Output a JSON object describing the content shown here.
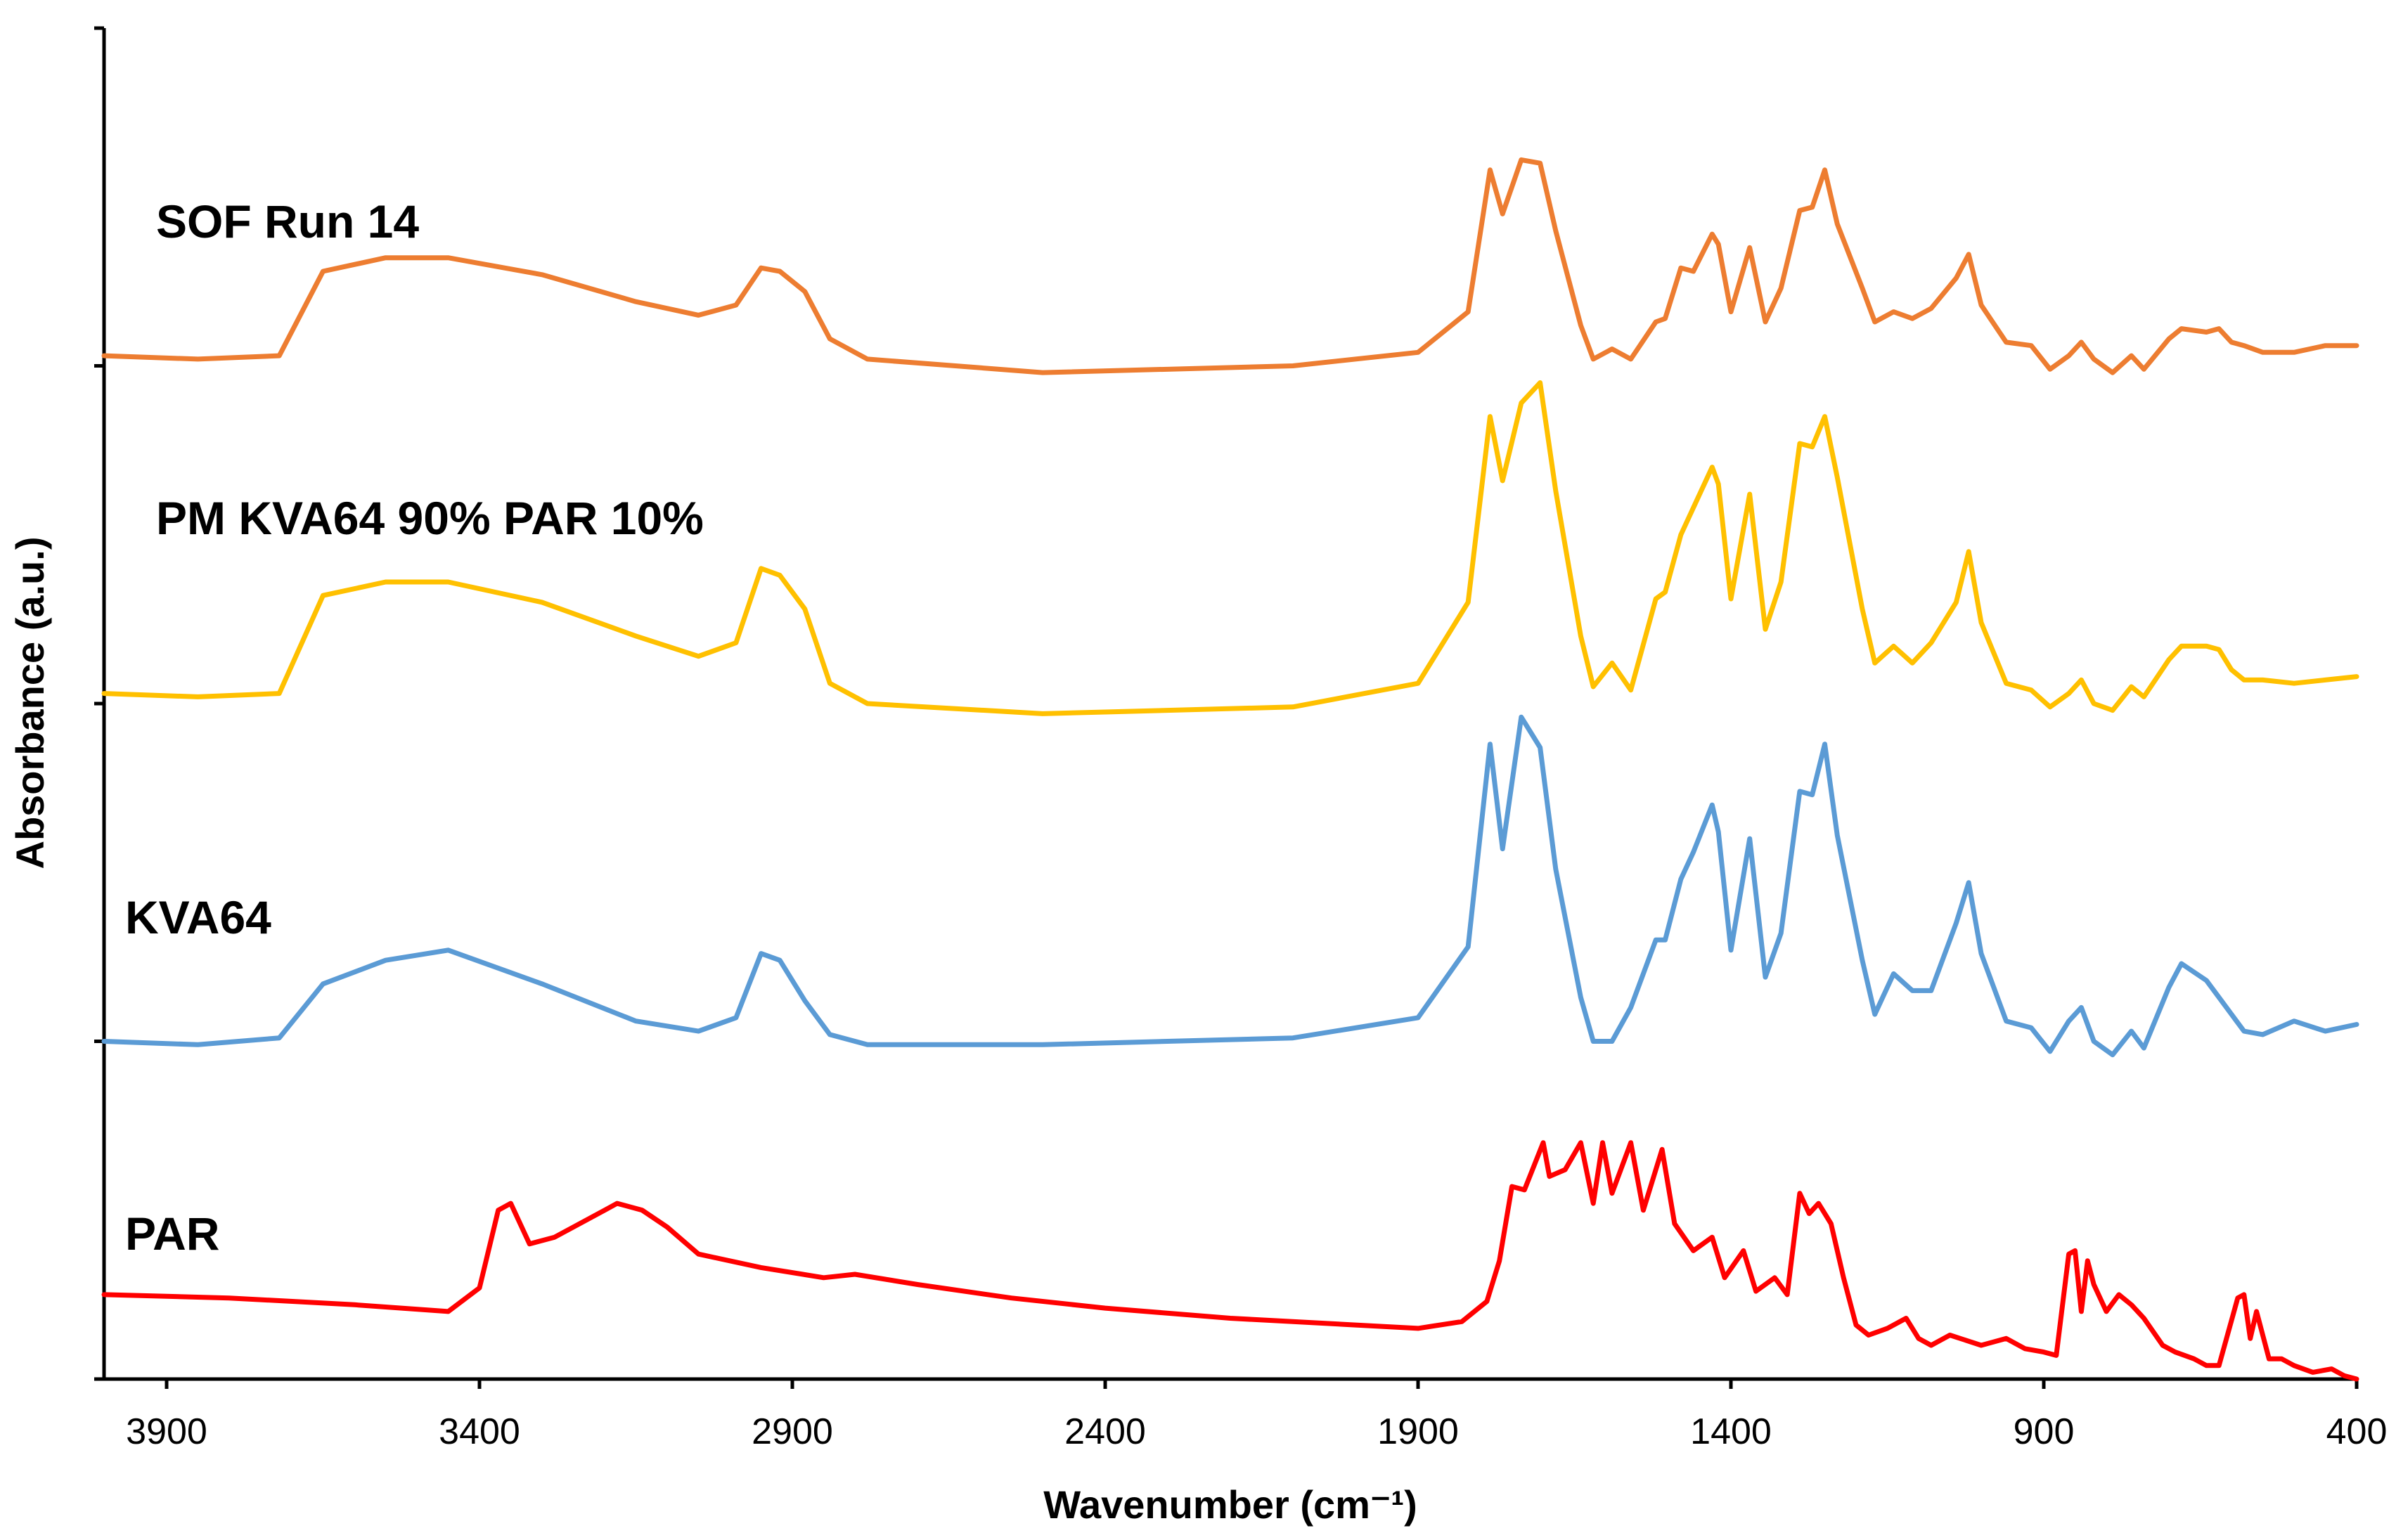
{
  "chart_data": {
    "type": "line",
    "title": "",
    "xlabel": "Wavenumber (cm⁻¹)",
    "ylabel": "Absorbance (a.u.)",
    "xlim": [
      4000,
      400
    ],
    "x_reversed": true,
    "ylim": [
      0,
      4
    ],
    "y_ticks": [
      0,
      1,
      2,
      3,
      4
    ],
    "x_ticks": [
      3900,
      3400,
      2900,
      2400,
      1900,
      1400,
      900,
      400
    ],
    "x_tick_labels": [
      "3900",
      "3400",
      "2900",
      "2400",
      "1900",
      "1400",
      "900",
      "400"
    ],
    "grid": false,
    "legend": "labels placed beside each trace",
    "series": [
      {
        "name": "SOF Run 14",
        "color": "#ED7D31",
        "points": [
          [
            4000,
            3.03
          ],
          [
            3850,
            3.02
          ],
          [
            3720,
            3.03
          ],
          [
            3650,
            3.28
          ],
          [
            3550,
            3.32
          ],
          [
            3450,
            3.32
          ],
          [
            3300,
            3.27
          ],
          [
            3150,
            3.19
          ],
          [
            3050,
            3.15
          ],
          [
            2990,
            3.18
          ],
          [
            2950,
            3.29
          ],
          [
            2920,
            3.28
          ],
          [
            2880,
            3.22
          ],
          [
            2840,
            3.08
          ],
          [
            2780,
            3.02
          ],
          [
            2500,
            2.98
          ],
          [
            2100,
            3.0
          ],
          [
            1900,
            3.04
          ],
          [
            1820,
            3.16
          ],
          [
            1785,
            3.58
          ],
          [
            1765,
            3.45
          ],
          [
            1735,
            3.61
          ],
          [
            1705,
            3.6
          ],
          [
            1680,
            3.4
          ],
          [
            1640,
            3.12
          ],
          [
            1620,
            3.02
          ],
          [
            1590,
            3.05
          ],
          [
            1560,
            3.02
          ],
          [
            1520,
            3.13
          ],
          [
            1505,
            3.14
          ],
          [
            1480,
            3.29
          ],
          [
            1460,
            3.28
          ],
          [
            1430,
            3.39
          ],
          [
            1420,
            3.36
          ],
          [
            1400,
            3.16
          ],
          [
            1370,
            3.35
          ],
          [
            1345,
            3.13
          ],
          [
            1320,
            3.23
          ],
          [
            1290,
            3.46
          ],
          [
            1270,
            3.47
          ],
          [
            1250,
            3.58
          ],
          [
            1230,
            3.42
          ],
          [
            1190,
            3.23
          ],
          [
            1170,
            3.13
          ],
          [
            1140,
            3.16
          ],
          [
            1110,
            3.14
          ],
          [
            1080,
            3.17
          ],
          [
            1040,
            3.26
          ],
          [
            1020,
            3.33
          ],
          [
            1000,
            3.18
          ],
          [
            960,
            3.07
          ],
          [
            920,
            3.06
          ],
          [
            890,
            2.99
          ],
          [
            860,
            3.03
          ],
          [
            840,
            3.07
          ],
          [
            820,
            3.02
          ],
          [
            790,
            2.98
          ],
          [
            760,
            3.03
          ],
          [
            740,
            2.99
          ],
          [
            700,
            3.08
          ],
          [
            680,
            3.11
          ],
          [
            640,
            3.1
          ],
          [
            620,
            3.11
          ],
          [
            600,
            3.07
          ],
          [
            580,
            3.06
          ],
          [
            550,
            3.04
          ],
          [
            500,
            3.04
          ],
          [
            450,
            3.06
          ],
          [
            400,
            3.06
          ]
        ]
      },
      {
        "name": "PM KVA64 90% PAR 10%",
        "color": "#FFC000",
        "points": [
          [
            4000,
            2.03
          ],
          [
            3850,
            2.02
          ],
          [
            3720,
            2.03
          ],
          [
            3650,
            2.32
          ],
          [
            3550,
            2.36
          ],
          [
            3450,
            2.36
          ],
          [
            3300,
            2.3
          ],
          [
            3150,
            2.2
          ],
          [
            3050,
            2.14
          ],
          [
            2990,
            2.18
          ],
          [
            2950,
            2.4
          ],
          [
            2920,
            2.38
          ],
          [
            2880,
            2.28
          ],
          [
            2840,
            2.06
          ],
          [
            2780,
            2.0
          ],
          [
            2500,
            1.97
          ],
          [
            2100,
            1.99
          ],
          [
            1900,
            2.06
          ],
          [
            1820,
            2.3
          ],
          [
            1785,
            2.85
          ],
          [
            1765,
            2.66
          ],
          [
            1735,
            2.89
          ],
          [
            1705,
            2.95
          ],
          [
            1680,
            2.63
          ],
          [
            1640,
            2.2
          ],
          [
            1620,
            2.05
          ],
          [
            1590,
            2.12
          ],
          [
            1560,
            2.04
          ],
          [
            1520,
            2.31
          ],
          [
            1505,
            2.33
          ],
          [
            1480,
            2.5
          ],
          [
            1460,
            2.58
          ],
          [
            1430,
            2.7
          ],
          [
            1420,
            2.65
          ],
          [
            1400,
            2.31
          ],
          [
            1370,
            2.62
          ],
          [
            1345,
            2.22
          ],
          [
            1320,
            2.36
          ],
          [
            1290,
            2.77
          ],
          [
            1270,
            2.76
          ],
          [
            1250,
            2.85
          ],
          [
            1230,
            2.67
          ],
          [
            1190,
            2.28
          ],
          [
            1170,
            2.12
          ],
          [
            1140,
            2.17
          ],
          [
            1110,
            2.12
          ],
          [
            1080,
            2.18
          ],
          [
            1040,
            2.3
          ],
          [
            1020,
            2.45
          ],
          [
            1000,
            2.24
          ],
          [
            960,
            2.06
          ],
          [
            920,
            2.04
          ],
          [
            890,
            1.99
          ],
          [
            860,
            2.03
          ],
          [
            840,
            2.07
          ],
          [
            820,
            2.0
          ],
          [
            790,
            1.98
          ],
          [
            760,
            2.05
          ],
          [
            740,
            2.02
          ],
          [
            700,
            2.13
          ],
          [
            680,
            2.17
          ],
          [
            640,
            2.17
          ],
          [
            620,
            2.16
          ],
          [
            600,
            2.1
          ],
          [
            580,
            2.07
          ],
          [
            550,
            2.07
          ],
          [
            500,
            2.06
          ],
          [
            450,
            2.07
          ],
          [
            400,
            2.08
          ]
        ]
      },
      {
        "name": "KVA64",
        "color": "#5B9BD5",
        "points": [
          [
            4000,
            1.0
          ],
          [
            3850,
            0.99
          ],
          [
            3720,
            1.01
          ],
          [
            3650,
            1.17
          ],
          [
            3550,
            1.24
          ],
          [
            3450,
            1.27
          ],
          [
            3300,
            1.17
          ],
          [
            3150,
            1.06
          ],
          [
            3050,
            1.03
          ],
          [
            2990,
            1.07
          ],
          [
            2950,
            1.26
          ],
          [
            2920,
            1.24
          ],
          [
            2880,
            1.12
          ],
          [
            2840,
            1.02
          ],
          [
            2780,
            0.99
          ],
          [
            2500,
            0.99
          ],
          [
            2100,
            1.01
          ],
          [
            1900,
            1.07
          ],
          [
            1820,
            1.28
          ],
          [
            1785,
            1.88
          ],
          [
            1765,
            1.57
          ],
          [
            1735,
            1.96
          ],
          [
            1705,
            1.87
          ],
          [
            1680,
            1.51
          ],
          [
            1640,
            1.13
          ],
          [
            1620,
            1.0
          ],
          [
            1590,
            1.0
          ],
          [
            1560,
            1.1
          ],
          [
            1520,
            1.3
          ],
          [
            1505,
            1.3
          ],
          [
            1480,
            1.48
          ],
          [
            1460,
            1.56
          ],
          [
            1430,
            1.7
          ],
          [
            1420,
            1.62
          ],
          [
            1400,
            1.27
          ],
          [
            1370,
            1.6
          ],
          [
            1345,
            1.19
          ],
          [
            1320,
            1.32
          ],
          [
            1290,
            1.74
          ],
          [
            1270,
            1.73
          ],
          [
            1250,
            1.88
          ],
          [
            1230,
            1.61
          ],
          [
            1190,
            1.24
          ],
          [
            1170,
            1.08
          ],
          [
            1140,
            1.2
          ],
          [
            1110,
            1.15
          ],
          [
            1080,
            1.15
          ],
          [
            1040,
            1.35
          ],
          [
            1020,
            1.47
          ],
          [
            1000,
            1.26
          ],
          [
            960,
            1.06
          ],
          [
            920,
            1.04
          ],
          [
            890,
            0.97
          ],
          [
            860,
            1.06
          ],
          [
            840,
            1.1
          ],
          [
            820,
            1.0
          ],
          [
            790,
            0.96
          ],
          [
            760,
            1.03
          ],
          [
            740,
            0.98
          ],
          [
            700,
            1.16
          ],
          [
            680,
            1.23
          ],
          [
            640,
            1.18
          ],
          [
            620,
            1.13
          ],
          [
            600,
            1.08
          ],
          [
            580,
            1.03
          ],
          [
            550,
            1.02
          ],
          [
            500,
            1.06
          ],
          [
            450,
            1.03
          ],
          [
            400,
            1.05
          ]
        ]
      },
      {
        "name": "PAR",
        "color": "#FF0000",
        "points": [
          [
            4000,
            0.25
          ],
          [
            3800,
            0.24
          ],
          [
            3600,
            0.22
          ],
          [
            3450,
            0.2
          ],
          [
            3400,
            0.27
          ],
          [
            3370,
            0.5
          ],
          [
            3350,
            0.52
          ],
          [
            3320,
            0.4
          ],
          [
            3280,
            0.42
          ],
          [
            3250,
            0.45
          ],
          [
            3200,
            0.5
          ],
          [
            3180,
            0.52
          ],
          [
            3140,
            0.5
          ],
          [
            3100,
            0.45
          ],
          [
            3050,
            0.37
          ],
          [
            2950,
            0.33
          ],
          [
            2850,
            0.3
          ],
          [
            2800,
            0.31
          ],
          [
            2700,
            0.28
          ],
          [
            2550,
            0.24
          ],
          [
            2400,
            0.21
          ],
          [
            2200,
            0.18
          ],
          [
            2000,
            0.16
          ],
          [
            1900,
            0.15
          ],
          [
            1830,
            0.17
          ],
          [
            1790,
            0.23
          ],
          [
            1770,
            0.35
          ],
          [
            1750,
            0.57
          ],
          [
            1730,
            0.56
          ],
          [
            1700,
            0.7
          ],
          [
            1690,
            0.6
          ],
          [
            1665,
            0.62
          ],
          [
            1640,
            0.7
          ],
          [
            1620,
            0.52
          ],
          [
            1605,
            0.7
          ],
          [
            1590,
            0.55
          ],
          [
            1560,
            0.7
          ],
          [
            1540,
            0.5
          ],
          [
            1510,
            0.68
          ],
          [
            1490,
            0.46
          ],
          [
            1460,
            0.38
          ],
          [
            1430,
            0.42
          ],
          [
            1410,
            0.3
          ],
          [
            1380,
            0.38
          ],
          [
            1360,
            0.26
          ],
          [
            1330,
            0.3
          ],
          [
            1310,
            0.25
          ],
          [
            1290,
            0.55
          ],
          [
            1275,
            0.49
          ],
          [
            1260,
            0.52
          ],
          [
            1240,
            0.46
          ],
          [
            1220,
            0.3
          ],
          [
            1200,
            0.16
          ],
          [
            1180,
            0.13
          ],
          [
            1150,
            0.15
          ],
          [
            1120,
            0.18
          ],
          [
            1100,
            0.12
          ],
          [
            1080,
            0.1
          ],
          [
            1050,
            0.13
          ],
          [
            1000,
            0.1
          ],
          [
            960,
            0.12
          ],
          [
            930,
            0.09
          ],
          [
            900,
            0.08
          ],
          [
            880,
            0.07
          ],
          [
            860,
            0.37
          ],
          [
            850,
            0.38
          ],
          [
            840,
            0.2
          ],
          [
            830,
            0.35
          ],
          [
            820,
            0.28
          ],
          [
            800,
            0.2
          ],
          [
            780,
            0.25
          ],
          [
            760,
            0.22
          ],
          [
            740,
            0.18
          ],
          [
            710,
            0.1
          ],
          [
            690,
            0.08
          ],
          [
            660,
            0.06
          ],
          [
            640,
            0.04
          ],
          [
            620,
            0.04
          ],
          [
            590,
            0.24
          ],
          [
            580,
            0.25
          ],
          [
            570,
            0.12
          ],
          [
            560,
            0.2
          ],
          [
            540,
            0.06
          ],
          [
            520,
            0.06
          ],
          [
            500,
            0.04
          ],
          [
            470,
            0.02
          ],
          [
            440,
            0.03
          ],
          [
            420,
            0.01
          ],
          [
            400,
            0.0
          ]
        ]
      }
    ]
  }
}
